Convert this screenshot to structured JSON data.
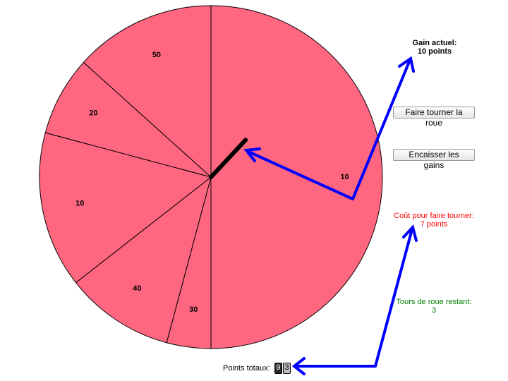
{
  "wheel": {
    "color": "#ff6680",
    "segments": [
      {
        "label": "10",
        "start": 0,
        "end": 180
      },
      {
        "label": "30",
        "start": 180,
        "end": 195
      },
      {
        "label": "40",
        "start": 195,
        "end": 232
      },
      {
        "label": "10",
        "start": 232,
        "end": 285
      },
      {
        "label": "20",
        "start": 285,
        "end": 312
      },
      {
        "label": "50",
        "start": 312,
        "end": 360
      }
    ],
    "pointer_angle": 43
  },
  "status": {
    "current_gain_title": "Gain actuel:",
    "current_gain_value": "10 points",
    "spin_cost_title": "Coût pour faire tourner:",
    "spin_cost_value": "7 points",
    "remaining_title": "Tours de roue restant:",
    "remaining_value": "3"
  },
  "buttons": {
    "spin_label": "Faire tourner la roue",
    "cashout_label": "Encaisser les gains"
  },
  "score": {
    "label": "Points totaux:",
    "digits": [
      "9",
      "3"
    ]
  },
  "colors": {
    "annotation_arrow": "#0000ff",
    "cost_text": "#ff0000",
    "remaining_text": "#008000"
  }
}
